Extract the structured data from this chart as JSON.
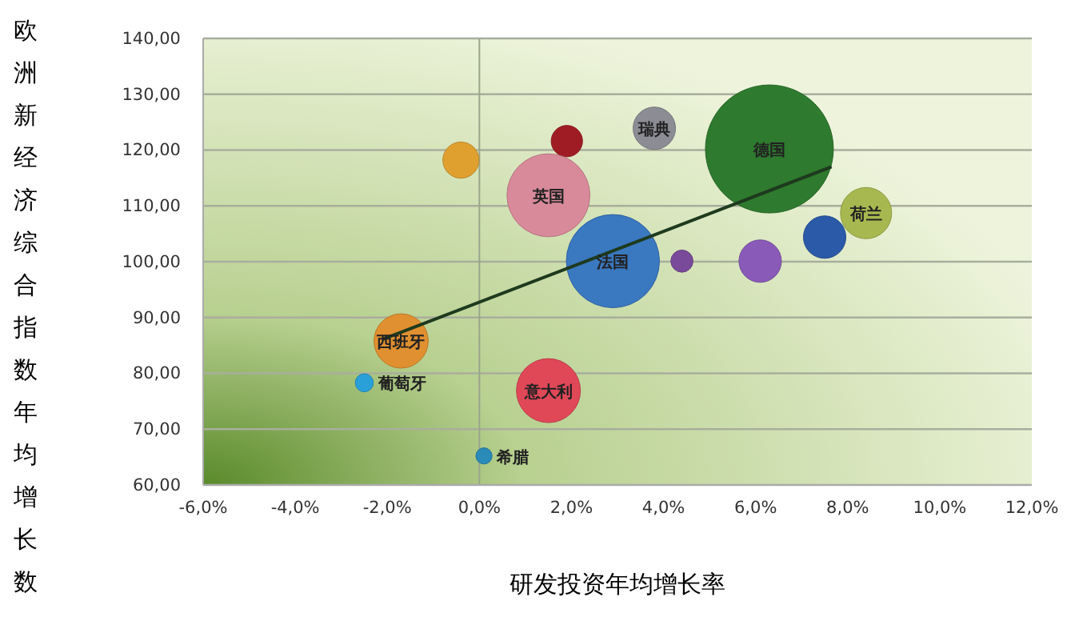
{
  "chart_data": {
    "type": "bubble",
    "xlabel": "研发投资年均增长率",
    "ylabel": "欧洲新经济综合指数年均增长数",
    "xlim": [
      -6,
      12
    ],
    "xticks": [
      {
        "value": -6,
        "label": "-6,0%"
      },
      {
        "value": -4,
        "label": "-4,0%"
      },
      {
        "value": -2,
        "label": "-2,0%"
      },
      {
        "value": 0,
        "label": "0,0%"
      },
      {
        "value": 2,
        "label": "2,0%"
      },
      {
        "value": 4,
        "label": "4,0%"
      },
      {
        "value": 6,
        "label": "6,0%"
      },
      {
        "value": 8,
        "label": "8,0%"
      },
      {
        "value": 10,
        "label": "10,0%"
      },
      {
        "value": 12,
        "label": "12,0%"
      }
    ],
    "ylim": [
      60,
      140
    ],
    "yticks": [
      {
        "value": 60,
        "label": "60,00"
      },
      {
        "value": 70,
        "label": "70,00"
      },
      {
        "value": 80,
        "label": "80,00"
      },
      {
        "value": 90,
        "label": "90,00"
      },
      {
        "value": 100,
        "label": "100,00"
      },
      {
        "value": 110,
        "label": "110,00"
      },
      {
        "value": 120,
        "label": "120,00"
      },
      {
        "value": 130,
        "label": "130,00"
      },
      {
        "value": 140,
        "label": "140,00"
      }
    ],
    "grid": "y",
    "ref_lines": [
      {
        "axis": "x",
        "value": 0,
        "label": null,
        "color": "#9aa58a"
      }
    ],
    "series": [
      {
        "type": "bubble",
        "x": [
          -0.4,
          1.9,
          3.8,
          6.3,
          1.5,
          2.9,
          4.4,
          6.1,
          7.5,
          8.4,
          -1.7,
          -2.5,
          1.5,
          0.1
        ],
        "values": [
          118.2,
          121.6,
          123.9,
          120.2,
          111.9,
          100.1,
          100.1,
          100.1,
          104.4,
          108.7,
          85.8,
          78.3,
          76.9,
          65.2
        ],
        "sizes": [
          0.08,
          0.06,
          0.11,
          1,
          0.42,
          0.53,
          0.03,
          0.11,
          0.11,
          0.16,
          0.18,
          0.02,
          0.25,
          0.016
        ],
        "colors": [
          "#e0a030",
          "#a01c24",
          "#8c8c94",
          "#2e7a2e",
          "#d88a9a",
          "#3a78c0",
          "#7a4a9a",
          "#8a5ab8",
          "#2a5aa8",
          "#a8b850",
          "#e09030",
          "#2aa0d8",
          "#e04858",
          "#2a8ab8"
        ]
      },
      {
        "type": "line",
        "x": [
          -2.1,
          7.65
        ],
        "values": [
          86.1,
          117.0
        ],
        "color": "#1e3a1e"
      }
    ],
    "annotations": [
      {
        "text": "瑞典",
        "x": 3.8,
        "y": 123.9
      },
      {
        "text": "德国",
        "x": 6.3,
        "y": 120.2
      },
      {
        "text": "英国",
        "x": 1.5,
        "y": 111.9
      },
      {
        "text": "法国",
        "x": 2.9,
        "y": 100.1
      },
      {
        "text": "荷兰",
        "x": 8.4,
        "y": 108.7
      },
      {
        "text": "西班牙",
        "x": -1.7,
        "y": 85.8
      },
      {
        "text": "葡萄牙",
        "x": -2.5,
        "y": 78.3
      },
      {
        "text": "意大利",
        "x": 1.5,
        "y": 76.9
      },
      {
        "text": "希腊",
        "x": 0.1,
        "y": 65.2
      }
    ]
  }
}
